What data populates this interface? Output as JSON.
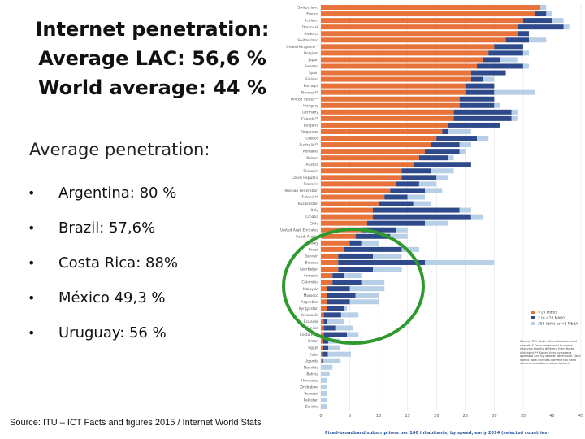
{
  "slide": {
    "title_lines": [
      "Internet penetration:",
      "Average LAC: 56,6 %",
      "World average: 44 %"
    ],
    "subheading": "Average penetration:",
    "bullets": [
      {
        "symbol": "•",
        "text": "Argentina: 80 %"
      },
      {
        "symbol": "•",
        "text": "Brazil: 57,6%"
      },
      {
        "symbol": "•",
        "text": "Costa Rica: 88%"
      },
      {
        "symbol": "•",
        "text": "México 49,3 %"
      },
      {
        "symbol": "•",
        "text": "Uruguay: 56 %"
      }
    ],
    "source": "Source: ITU – ICT Facts and figures 2015  / Internet World Stats",
    "highlight_color": "#2e9a2e"
  },
  "chart_data": {
    "type": "bar",
    "orientation": "horizontal",
    "stacked": true,
    "title": "Fixed-broadband subscriptions per 100 inhabitants, by speed, early 2014 (selected countries)",
    "xlim": [
      0,
      45
    ],
    "x_ticks": [
      "0",
      "5",
      "10",
      "15",
      "20",
      "25",
      "30",
      "35",
      "40",
      "45"
    ],
    "categories": [
      "Switzerland",
      "France",
      "Iceland",
      "Denmark",
      "Andorra",
      "Switzerland",
      "United Kingdom**",
      "Belgium",
      "Japan",
      "Sweden",
      "Spain",
      "Finland",
      "Portugal",
      "Norway**",
      "United States**",
      "Hungary",
      "Germany",
      "Canada**",
      "Bulgaria",
      "Singapore",
      "Greece",
      "Australia**",
      "Romania",
      "Poland",
      "Austria",
      "Slovenia",
      "Czech Republic",
      "Slovakia",
      "Russian Federation",
      "Estonia**",
      "Kazakhstan",
      "Italy",
      "Croatia",
      "Chile",
      "United Arab Emirates",
      "Saudi Arabia",
      "Turkey",
      "Brazil",
      "Bahrain",
      "Belarus",
      "Azerbaijan",
      "Armenia",
      "Colombia",
      "Malaysia",
      "Morocco",
      "Argentina",
      "Kyrgyzstan",
      "Venezuela",
      "Ecuador",
      "Tunisia",
      "Costa Rica",
      "Oman",
      "Egypt",
      "Cuba",
      "Uganda",
      "Namibia",
      "Bolivia",
      "Honduras",
      "Zimbabwe",
      "Senegal",
      "Pakistan",
      "Zambia"
    ],
    "series": [
      {
        "name": ">10 Mbit/s",
        "color": "#e8733a",
        "values": [
          38,
          37,
          35,
          34,
          34,
          32,
          30,
          29,
          28,
          27,
          26,
          26,
          25,
          25,
          24,
          24,
          23,
          23,
          22,
          21,
          20,
          19,
          18,
          17,
          16,
          14,
          14,
          13,
          12,
          11,
          10,
          9,
          9,
          8,
          7,
          6,
          5,
          4,
          3,
          3,
          3,
          2,
          2,
          1,
          1,
          1,
          1,
          0.5,
          0.5,
          0.5,
          0.5,
          0.3,
          0.3,
          0.2,
          0.2,
          0,
          0,
          0,
          0,
          0,
          0,
          0
        ]
      },
      {
        "name": "2 to <10 Mbit/s",
        "color": "#2e4a8a",
        "values": [
          0,
          2,
          5,
          8,
          2,
          4,
          5,
          6,
          3,
          8,
          6,
          2,
          5,
          5,
          6,
          6,
          10,
          10,
          9,
          1,
          7,
          5,
          6,
          5,
          10,
          5,
          6,
          4,
          6,
          4,
          6,
          15,
          17,
          10,
          6,
          6,
          2,
          10,
          6,
          15,
          6,
          2,
          5,
          4,
          5,
          4,
          3,
          3,
          0.5,
          2,
          4,
          1,
          1,
          1,
          0.2,
          0,
          0,
          0,
          0,
          0,
          0,
          0
        ]
      },
      {
        "name": "256 kbit/s to <2 Mbit/s",
        "color": "#b8cfe8",
        "values": [
          1,
          1,
          2,
          1,
          0,
          3,
          0,
          1,
          3,
          1,
          0,
          2,
          0,
          7,
          0,
          1,
          1,
          1,
          0,
          4,
          2,
          2,
          1,
          1,
          0,
          4,
          2,
          3,
          3,
          3,
          3,
          2,
          2,
          4,
          2,
          3,
          3,
          3,
          5,
          12,
          5,
          3,
          4,
          6,
          4,
          5,
          0.5,
          3,
          3,
          3,
          2,
          2,
          2,
          4,
          3,
          2,
          1.5,
          1,
          1,
          1,
          1,
          1
        ]
      }
    ],
    "legend_position": "bottom-right",
    "note": "Source: ITU. Note: Refers to advertised speeds. * Data correspond to speed intervals slightly different from those indicated: ** Speed tiers by speeds available and by speeds advertised. Dark Nordic data includes commercial fixed wireless broadband subscriptions.",
    "annotation": "green ellipse highlighting Latin American and other emerging economies"
  }
}
